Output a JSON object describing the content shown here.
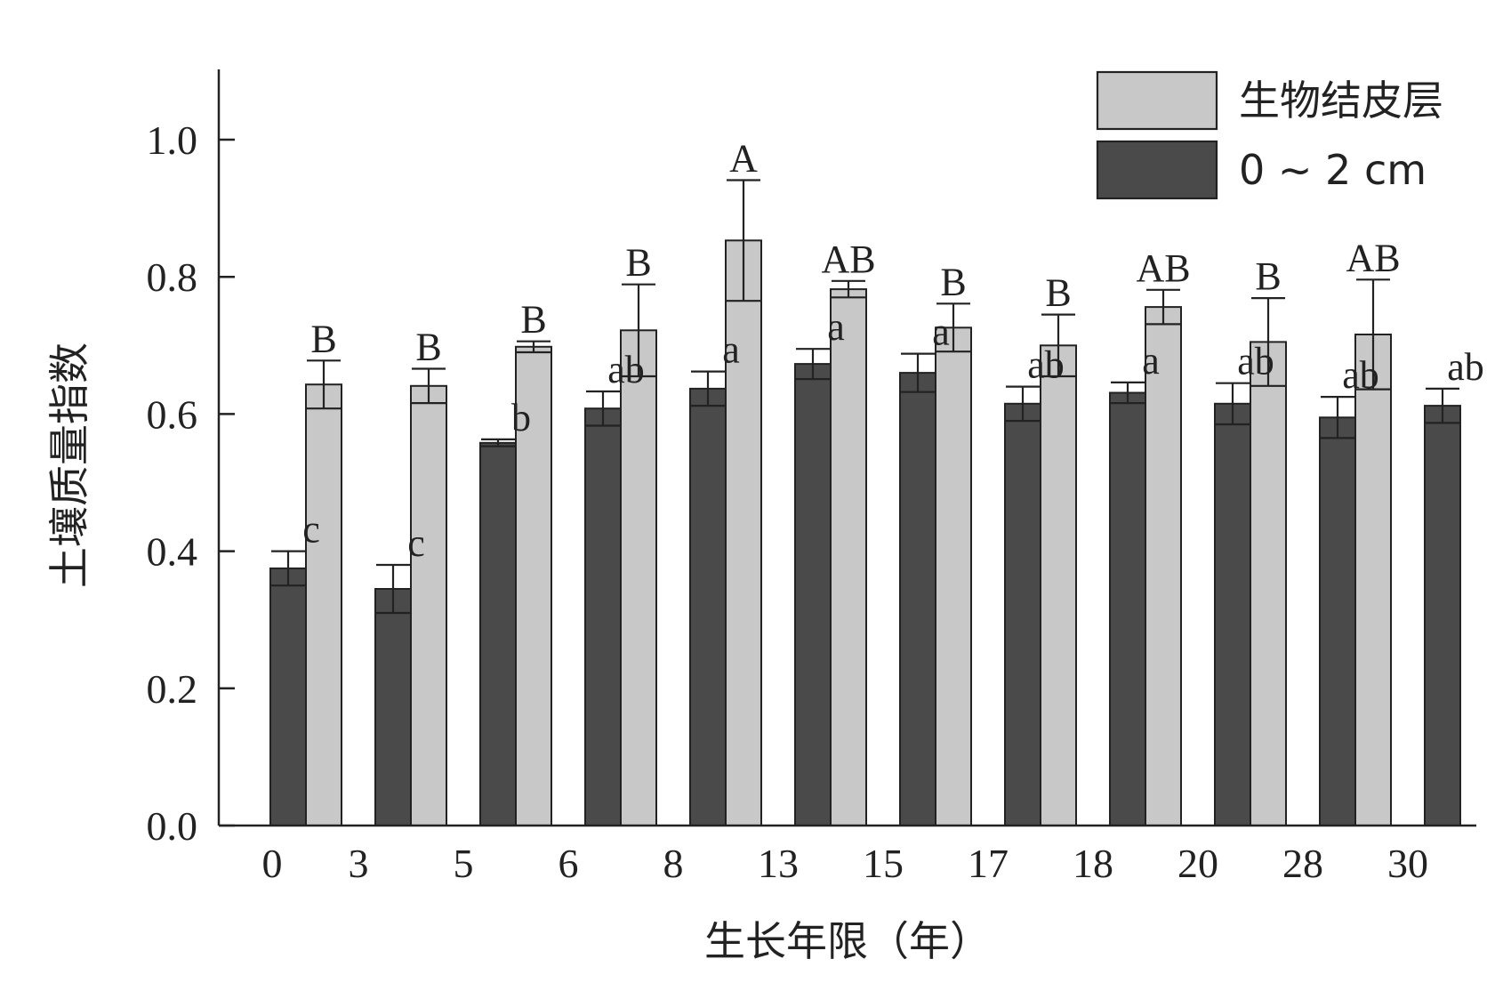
{
  "chart_data": {
    "type": "bar",
    "categories": [
      "0",
      "3",
      "5",
      "6",
      "8",
      "13",
      "15",
      "17",
      "18",
      "20",
      "28",
      "30"
    ],
    "series": [
      {
        "name": "生物结皮层",
        "color": "#c8c8c8",
        "values": [
          null,
          0.643,
          0.641,
          0.698,
          0.722,
          0.853,
          0.782,
          0.726,
          0.7,
          0.756,
          0.705,
          0.716
        ],
        "errors": [
          null,
          0.035,
          0.025,
          0.008,
          0.067,
          0.088,
          0.012,
          0.035,
          0.045,
          0.025,
          0.064,
          0.08
        ],
        "sig_labels": [
          "",
          "B",
          "B",
          "B",
          "B",
          "A",
          "AB",
          "B",
          "B",
          "AB",
          "B",
          "AB"
        ]
      },
      {
        "name": "0 ~ 2 cm",
        "color": "#4a4a4a",
        "values": [
          0.375,
          0.345,
          0.558,
          0.608,
          0.637,
          0.673,
          0.66,
          0.615,
          0.631,
          0.615,
          0.595,
          0.612
        ],
        "errors": [
          0.025,
          0.035,
          0.005,
          0.025,
          0.025,
          0.022,
          0.028,
          0.025,
          0.015,
          0.03,
          0.03,
          0.025
        ],
        "sig_labels": [
          "c",
          "c",
          "b",
          "ab",
          "a",
          "a",
          "a",
          "ab",
          "a",
          "ab",
          "ab",
          "ab"
        ]
      }
    ],
    "xlabel": "生长年限（年）",
    "ylabel": "土壤质量指数",
    "ylim": [
      0,
      1.1
    ],
    "yticks": [
      "0.0",
      "0.2",
      "0.4",
      "0.6",
      "0.8",
      "1.0"
    ],
    "legend_position": "top-right",
    "grid": false
  }
}
